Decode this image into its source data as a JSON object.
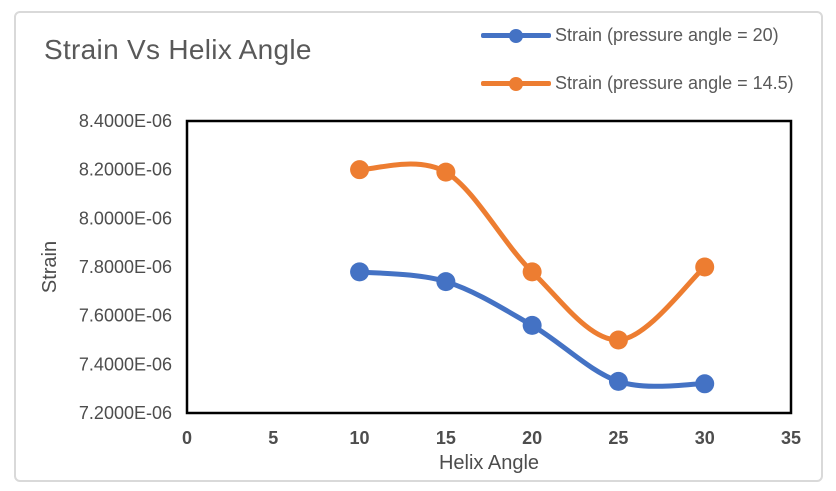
{
  "chart_data": {
    "type": "line",
    "title": "Strain Vs Helix Angle",
    "xlabel": "Helix Angle",
    "ylabel": "Strain",
    "x": [
      10,
      15,
      20,
      25,
      30
    ],
    "series": [
      {
        "name": "Strain (pressure angle = 20)",
        "color": "#4472C4",
        "values": [
          7.78e-06,
          7.74e-06,
          7.56e-06,
          7.33e-06,
          7.32e-06
        ]
      },
      {
        "name": "Strain (pressure angle = 14.5)",
        "color": "#ED7D31",
        "values": [
          8.2e-06,
          8.19e-06,
          7.78e-06,
          7.5e-06,
          7.8e-06
        ]
      }
    ],
    "xlim": [
      0,
      35
    ],
    "ylim": [
      7.2e-06,
      8.4e-06
    ],
    "x_ticks": [
      0,
      5,
      10,
      15,
      20,
      25,
      30,
      35
    ],
    "x_tick_labels": [
      "0",
      "5",
      "10",
      "15",
      "20",
      "25",
      "30",
      "35"
    ],
    "y_ticks": [
      7.2e-06,
      7.4e-06,
      7.6e-06,
      7.8e-06,
      8e-06,
      8.2e-06,
      8.4e-06
    ],
    "y_tick_labels": [
      "7.2000E-06",
      "7.4000E-06",
      "7.6000E-06",
      "7.8000E-06",
      "8.0000E-06",
      "8.2000E-06",
      "8.4000E-06"
    ],
    "grid": false,
    "legend_position": "top-right",
    "smooth": true,
    "marker": "circle"
  },
  "style": {
    "plot_border_color": "#000000",
    "figure_border_color": "#d9d9d9",
    "title_color": "#595959",
    "tick_color": "#4d4d4d"
  }
}
